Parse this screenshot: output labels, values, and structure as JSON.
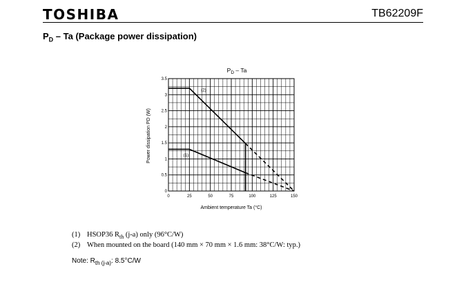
{
  "header": {
    "brand": "TOSHIBA",
    "part_number": "TB62209F"
  },
  "section": {
    "title_main": "P",
    "title_sub": "D",
    "title_rest": " – Ta (Package power dissipation)"
  },
  "notes": [
    {
      "index": "(1)",
      "pre": "HSOP36 R",
      "sub": "th",
      "post": " (j-a) only (96°C/W)"
    },
    {
      "index": "(2)",
      "pre": "When mounted on the board (140 mm × 70 mm × 1.6 mm: 38°C/W: typ.)",
      "sub": "",
      "post": ""
    }
  ],
  "note_line": {
    "prefix": "Note:  R",
    "sub": "th (j-a)",
    "suffix": ": 8.5°C/W"
  },
  "chart_data": {
    "type": "line",
    "title_main": "P",
    "title_sub": "D",
    "title_rest": " – Ta",
    "xlabel": "Ambient temperature   Ta   (°C)",
    "ylabel": "Power dissipation   PD   (W)",
    "xlim": [
      0,
      150
    ],
    "ylim": [
      0,
      3.5
    ],
    "x_ticks": [
      0,
      25,
      50,
      75,
      100,
      125,
      150
    ],
    "y_ticks": [
      0,
      0.5,
      1,
      1.5,
      2,
      2.5,
      3,
      3.5
    ],
    "x_tick_labels": [
      "0",
      "25",
      "50",
      "75",
      "100",
      "125",
      "150"
    ],
    "y_tick_labels": [
      "0",
      "0.5",
      "1",
      "1.5",
      "2",
      "2.5",
      "3",
      "3.5"
    ],
    "grid": true,
    "series": [
      {
        "name": "(1)",
        "label": "(1)",
        "label_at": [
          21,
          1.07
        ],
        "solid": [
          [
            0,
            1.3
          ],
          [
            25,
            1.3
          ],
          [
            92,
            0.57
          ]
        ],
        "dashed": [
          [
            92,
            0.57
          ],
          [
            150,
            0
          ]
        ],
        "drop_x": 92
      },
      {
        "name": "(2)",
        "label": "(2)",
        "label_at": [
          42,
          3.1
        ],
        "solid": [
          [
            0,
            3.2
          ],
          [
            25,
            3.2
          ],
          [
            92,
            1.48
          ]
        ],
        "dashed": [
          [
            92,
            1.48
          ],
          [
            150,
            0
          ]
        ],
        "drop_x": 92
      }
    ]
  }
}
